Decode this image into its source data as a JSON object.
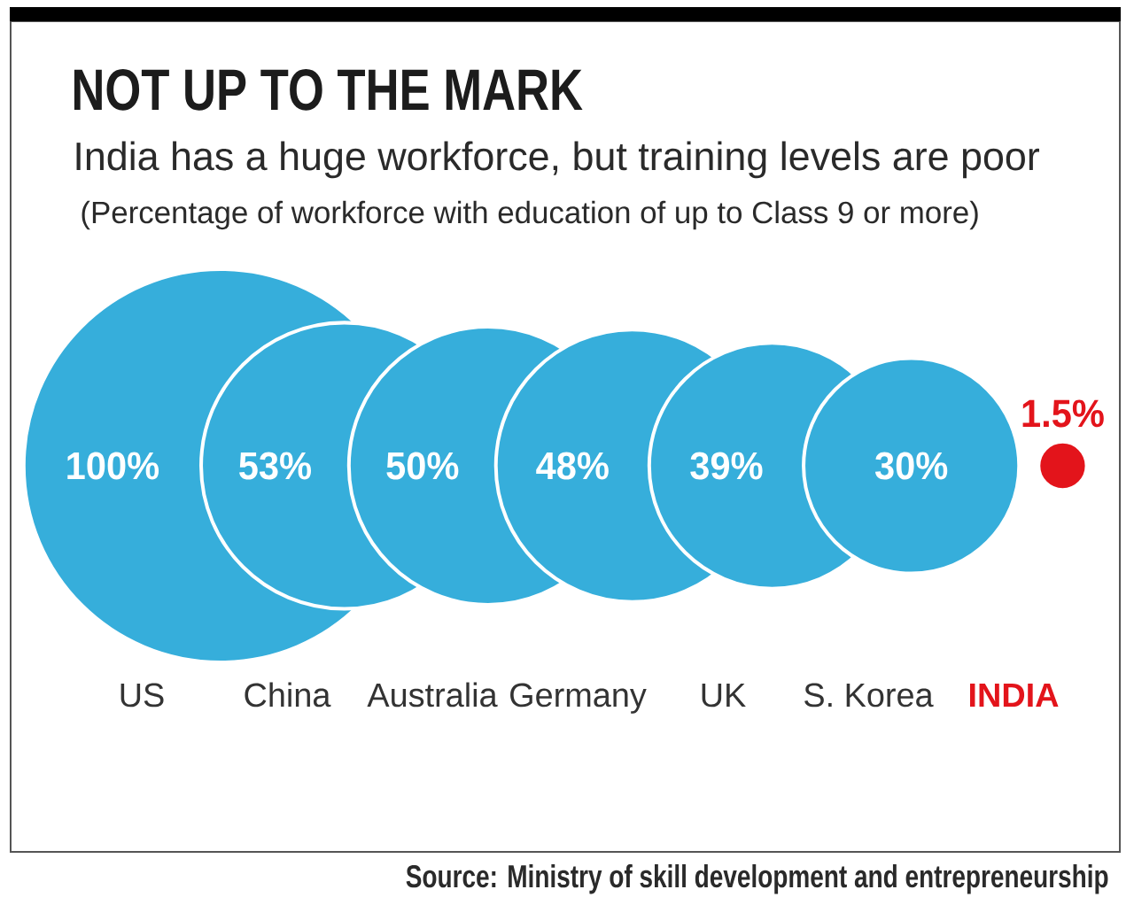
{
  "chart_data": {
    "type": "other",
    "title": "NOT UP TO THE MARK",
    "subtitle": "India has a huge workforce, but training levels are poor",
    "annotations": [
      "(Percentage of workforce with education of up to Class 9 or more)",
      "Source: Ministry of skill development and entrepreneurship"
    ],
    "categories": [
      "US",
      "China",
      "Australia",
      "Germany",
      "UK",
      "S. Korea",
      "INDIA"
    ],
    "values": [
      100,
      53,
      50,
      48,
      39,
      30,
      1.5
    ],
    "value_labels": [
      "100%",
      "53%",
      "50%",
      "48%",
      "39%",
      "30%",
      "1.5%"
    ],
    "colors": [
      "#36aedb",
      "#36aedb",
      "#36aedb",
      "#36aedb",
      "#36aedb",
      "#36aedb",
      "#e3141b"
    ]
  }
}
